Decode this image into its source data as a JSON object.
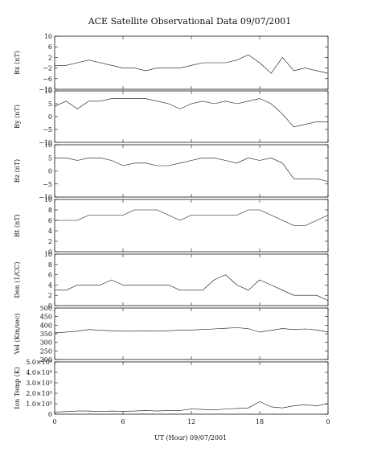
{
  "chart_data": {
    "type": "line",
    "title": "ACE Satellite Observational Data   09/07/2001",
    "xlabel": "UT (Hour)   09/07/2001",
    "x_ticks": [
      "0",
      "6",
      "12",
      "18",
      "0"
    ],
    "x_tick_values": [
      0,
      6,
      12,
      18,
      24
    ],
    "xlim": [
      0,
      24
    ],
    "grid": false,
    "panels": [
      {
        "ylabel": "Bx (nT)",
        "ylim": [
          -10,
          10
        ],
        "y_tick_values": [
          -10,
          -6,
          -2,
          2,
          6,
          10
        ],
        "y_tick_labels": [
          "−10",
          "−6",
          "−2",
          "2",
          "6",
          "10"
        ],
        "x": [
          0,
          1,
          2,
          3,
          4,
          5,
          6,
          7,
          8,
          9,
          10,
          11,
          12,
          13,
          14,
          15,
          16,
          17,
          18,
          19,
          20,
          21,
          22,
          23,
          24
        ],
        "values": [
          -1,
          -1,
          0,
          1,
          0,
          -1,
          -2,
          -2,
          -3,
          -2,
          -2,
          -2,
          -1,
          0,
          0,
          0,
          1,
          3,
          0,
          -4,
          2,
          -3,
          -2,
          -3,
          -4
        ]
      },
      {
        "ylabel": "By (nT)",
        "ylim": [
          -10,
          10
        ],
        "y_tick_values": [
          -10,
          -5,
          0,
          5,
          10
        ],
        "y_tick_labels": [
          "−10",
          "−5",
          "0",
          "5",
          "10"
        ],
        "x": [
          0,
          1,
          2,
          3,
          4,
          5,
          6,
          7,
          8,
          9,
          10,
          11,
          12,
          13,
          14,
          15,
          16,
          17,
          18,
          19,
          20,
          21,
          22,
          23,
          24
        ],
        "values": [
          4,
          6,
          3,
          6,
          6,
          7,
          7,
          7,
          7,
          6,
          5,
          3,
          5,
          6,
          5,
          6,
          5,
          6,
          7,
          5,
          1,
          -4,
          -3,
          -2,
          -2
        ]
      },
      {
        "ylabel": "Bz (nT)",
        "ylim": [
          -10,
          10
        ],
        "y_tick_values": [
          -10,
          -5,
          0,
          5,
          10
        ],
        "y_tick_labels": [
          "−10",
          "−5",
          "0",
          "5",
          "10"
        ],
        "x": [
          0,
          1,
          2,
          3,
          4,
          5,
          6,
          7,
          8,
          9,
          10,
          11,
          12,
          13,
          14,
          15,
          16,
          17,
          18,
          19,
          20,
          21,
          22,
          23,
          24
        ],
        "values": [
          5,
          5,
          4,
          5,
          5,
          4,
          2,
          3,
          3,
          2,
          2,
          3,
          4,
          5,
          5,
          4,
          3,
          5,
          4,
          5,
          3,
          -3,
          -3,
          -3,
          -4
        ]
      },
      {
        "ylabel": "Bt (nT)",
        "ylim": [
          0,
          10
        ],
        "y_tick_values": [
          0,
          2,
          4,
          6,
          8,
          10
        ],
        "y_tick_labels": [
          "0",
          "2",
          "4",
          "6",
          "8",
          "10"
        ],
        "x": [
          0,
          1,
          2,
          3,
          4,
          5,
          6,
          7,
          8,
          9,
          10,
          11,
          12,
          13,
          14,
          15,
          16,
          17,
          18,
          19,
          20,
          21,
          22,
          23,
          24
        ],
        "values": [
          6,
          6,
          6,
          7,
          7,
          7,
          7,
          8,
          8,
          8,
          7,
          6,
          7,
          7,
          7,
          7,
          7,
          8,
          8,
          7,
          6,
          5,
          5,
          6,
          7
        ]
      },
      {
        "ylabel": "Den (1/CC)",
        "ylim": [
          0,
          10
        ],
        "y_tick_values": [
          0,
          2,
          4,
          6,
          8,
          10
        ],
        "y_tick_labels": [
          "0",
          "2",
          "4",
          "6",
          "8",
          "10"
        ],
        "x": [
          0,
          1,
          2,
          3,
          4,
          5,
          6,
          7,
          8,
          9,
          10,
          11,
          12,
          13,
          14,
          15,
          16,
          17,
          18,
          19,
          20,
          21,
          22,
          23,
          24
        ],
        "values": [
          3,
          3,
          4,
          4,
          4,
          5,
          4,
          4,
          4,
          4,
          4,
          3,
          3,
          3,
          5,
          6,
          4,
          3,
          5,
          4,
          3,
          2,
          2,
          2,
          1
        ]
      },
      {
        "ylabel": "Vel (Km/sec)",
        "ylim": [
          200,
          500
        ],
        "y_tick_values": [
          200,
          250,
          300,
          350,
          400,
          450,
          500
        ],
        "y_tick_labels": [
          "200",
          "250",
          "300",
          "350",
          "400",
          "450",
          "500"
        ],
        "x": [
          0,
          1,
          2,
          3,
          4,
          5,
          6,
          7,
          8,
          9,
          10,
          11,
          12,
          13,
          14,
          15,
          16,
          17,
          18,
          19,
          20,
          21,
          22,
          23,
          24
        ],
        "values": [
          355,
          360,
          365,
          375,
          370,
          368,
          365,
          365,
          368,
          365,
          368,
          370,
          372,
          375,
          378,
          382,
          385,
          380,
          360,
          370,
          380,
          375,
          378,
          372,
          360
        ]
      },
      {
        "ylabel": "Ion Temp (K)",
        "ylim": [
          0,
          500000
        ],
        "y_tick_values": [
          0,
          100000,
          200000,
          300000,
          400000,
          500000
        ],
        "y_tick_labels": [
          "0",
          "1.0×10⁵",
          "2.0×10⁵",
          "3.0×10⁵",
          "4.0×10⁵",
          "5.0×10⁵"
        ],
        "x": [
          0,
          1,
          2,
          3,
          4,
          5,
          6,
          7,
          8,
          9,
          10,
          11,
          12,
          13,
          14,
          15,
          16,
          17,
          18,
          19,
          20,
          21,
          22,
          23,
          24
        ],
        "values": [
          20000,
          25000,
          30000,
          30000,
          25000,
          30000,
          28000,
          30000,
          35000,
          30000,
          35000,
          35000,
          50000,
          45000,
          40000,
          50000,
          55000,
          60000,
          120000,
          70000,
          60000,
          80000,
          90000,
          80000,
          100000
        ]
      }
    ]
  }
}
